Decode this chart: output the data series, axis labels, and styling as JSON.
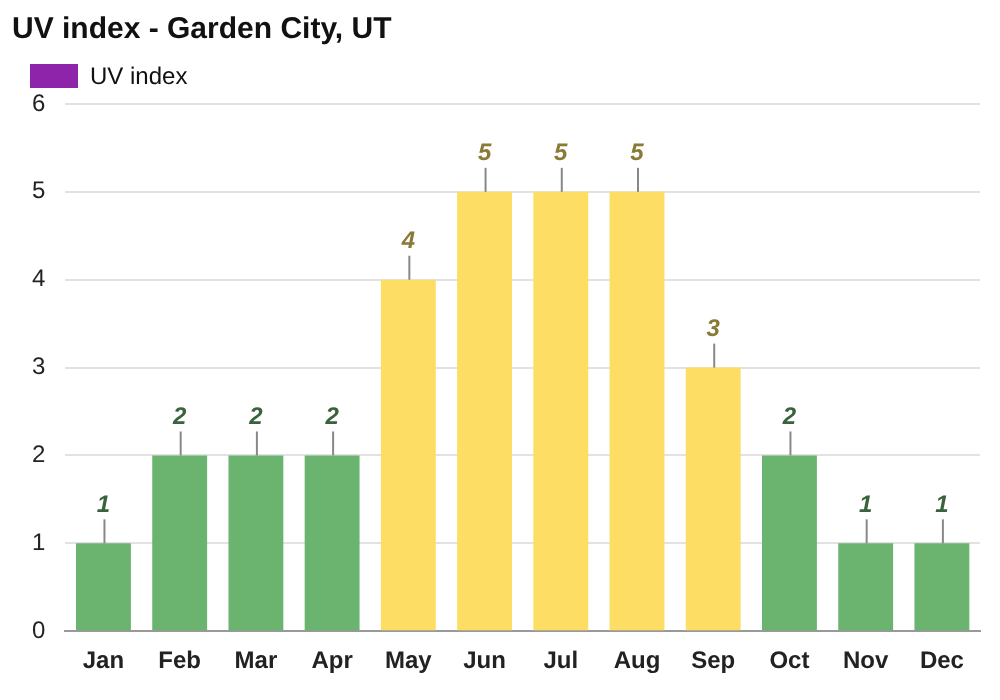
{
  "chart_data": {
    "type": "bar",
    "title": "UV index - Garden City, UT",
    "categories": [
      "Jan",
      "Feb",
      "Mar",
      "Apr",
      "May",
      "Jun",
      "Jul",
      "Aug",
      "Sep",
      "Oct",
      "Nov",
      "Dec"
    ],
    "series": [
      {
        "name": "UV index",
        "color": "#8e24aa",
        "values": [
          1,
          2,
          2,
          2,
          4,
          5,
          5,
          5,
          3,
          2,
          1,
          1
        ],
        "colors": [
          "#6ab46f",
          "#6ab46f",
          "#6ab46f",
          "#6ab46f",
          "#fddd63",
          "#fddd63",
          "#fddd63",
          "#fddd63",
          "#fddd63",
          "#6ab46f",
          "#6ab46f",
          "#6ab46f"
        ]
      }
    ],
    "ylim": [
      0,
      6
    ],
    "yticks": [
      0,
      1,
      2,
      3,
      4,
      5,
      6
    ],
    "grid": "y",
    "legend": "top left",
    "data_labels": true
  }
}
